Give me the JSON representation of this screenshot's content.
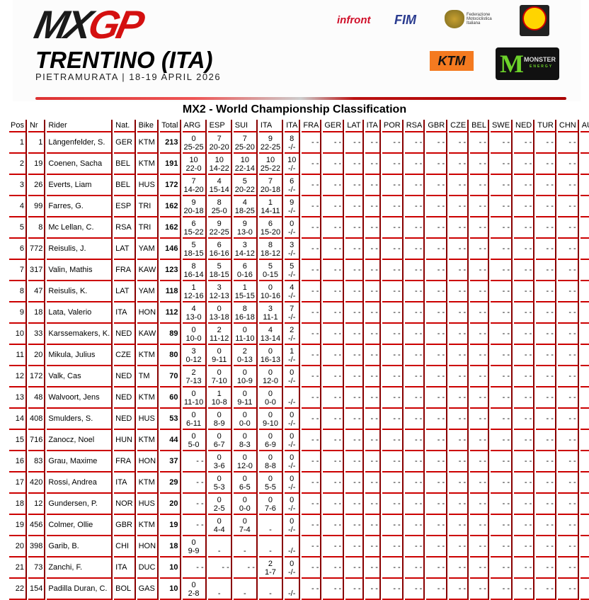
{
  "header": {
    "logo_mx": "MX",
    "logo_gp": "GP",
    "event": "TRENTINO (ITA)",
    "subtitle": "PIETRAMURATA | 18-19 APRIL 2026",
    "sponsors": {
      "infront": "infront",
      "fim": "FIM",
      "fmi": "Federazione Motociclistica Italiana",
      "ktm": "KTM",
      "monster": "MONSTER",
      "monster_sub": "ENERGY"
    }
  },
  "title": "MX2 - World Championship Classification",
  "columns": [
    "Pos",
    "Nr",
    "Rider",
    "Nat.",
    "Bike",
    "Total",
    "ARG",
    "ESP",
    "SUI",
    "ITA",
    "ITA",
    "FRA",
    "GER",
    "LAT",
    "ITA",
    "POR",
    "RSA",
    "GBR",
    "CZE",
    "BEL",
    "SWE",
    "NED",
    "TUR",
    "CHN",
    "AUS"
  ],
  "empty_cell": "- -",
  "colors": {
    "border_bottom": "#cc0000",
    "border_right": "#880000"
  },
  "rows": [
    {
      "pos": "1",
      "nr": "1",
      "rider": "Längenfelder, S.",
      "nat": "GER",
      "bike": "KTM",
      "total": "213",
      "ev": [
        [
          "0",
          "25-25"
        ],
        [
          "7",
          "20-20"
        ],
        [
          "7",
          "25-20"
        ],
        [
          "9",
          "22-25"
        ],
        [
          "8",
          "-/-"
        ]
      ]
    },
    {
      "pos": "2",
      "nr": "19",
      "rider": "Coenen, Sacha",
      "nat": "BEL",
      "bike": "KTM",
      "total": "191",
      "ev": [
        [
          "10",
          "22-0"
        ],
        [
          "10",
          "14-22"
        ],
        [
          "10",
          "22-14"
        ],
        [
          "10",
          "25-22"
        ],
        [
          "10",
          "-/-"
        ]
      ]
    },
    {
      "pos": "3",
      "nr": "26",
      "rider": "Everts, Liam",
      "nat": "BEL",
      "bike": "HUS",
      "total": "172",
      "ev": [
        [
          "7",
          "14-20"
        ],
        [
          "4",
          "15-14"
        ],
        [
          "5",
          "20-22"
        ],
        [
          "7",
          "20-18"
        ],
        [
          "6",
          "-/-"
        ]
      ]
    },
    {
      "pos": "4",
      "nr": "99",
      "rider": "Farres, G.",
      "nat": "ESP",
      "bike": "TRI",
      "total": "162",
      "ev": [
        [
          "9",
          "20-18"
        ],
        [
          "8",
          "25-0"
        ],
        [
          "4",
          "18-25"
        ],
        [
          "1",
          "14-11"
        ],
        [
          "9",
          "-/-"
        ]
      ]
    },
    {
      "pos": "5",
      "nr": "8",
      "rider": "Mc Lellan, C.",
      "nat": "RSA",
      "bike": "TRI",
      "total": "162",
      "ev": [
        [
          "6",
          "15-22"
        ],
        [
          "9",
          "22-25"
        ],
        [
          "9",
          "13-0"
        ],
        [
          "6",
          "15-20"
        ],
        [
          "0",
          "-/-"
        ]
      ]
    },
    {
      "pos": "6",
      "nr": "772",
      "rider": "Reisulis, J.",
      "nat": "LAT",
      "bike": "YAM",
      "total": "146",
      "ev": [
        [
          "5",
          "18-15"
        ],
        [
          "6",
          "16-16"
        ],
        [
          "3",
          "14-12"
        ],
        [
          "8",
          "18-12"
        ],
        [
          "3",
          "-/-"
        ]
      ]
    },
    {
      "pos": "7",
      "nr": "317",
      "rider": "Valin, Mathis",
      "nat": "FRA",
      "bike": "KAW",
      "total": "123",
      "ev": [
        [
          "8",
          "16-14"
        ],
        [
          "5",
          "18-15"
        ],
        [
          "6",
          "0-16"
        ],
        [
          "5",
          "0-15"
        ],
        [
          "5",
          "-/-"
        ]
      ]
    },
    {
      "pos": "8",
      "nr": "47",
      "rider": "Reisulis, K.",
      "nat": "LAT",
      "bike": "YAM",
      "total": "118",
      "ev": [
        [
          "1",
          "12-16"
        ],
        [
          "3",
          "12-13"
        ],
        [
          "1",
          "15-15"
        ],
        [
          "0",
          "10-16"
        ],
        [
          "4",
          "-/-"
        ]
      ]
    },
    {
      "pos": "9",
      "nr": "18",
      "rider": "Lata, Valerio",
      "nat": "ITA",
      "bike": "HON",
      "total": "112",
      "ev": [
        [
          "4",
          "13-0"
        ],
        [
          "0",
          "13-18"
        ],
        [
          "8",
          "16-18"
        ],
        [
          "3",
          "11-1"
        ],
        [
          "7",
          "-/-"
        ]
      ]
    },
    {
      "pos": "10",
      "nr": "33",
      "rider": "Karssemakers, K.",
      "nat": "NED",
      "bike": "KAW",
      "total": "89",
      "ev": [
        [
          "0",
          "10-0"
        ],
        [
          "2",
          "11-12"
        ],
        [
          "0",
          "11-10"
        ],
        [
          "4",
          "13-14"
        ],
        [
          "2",
          "-/-"
        ]
      ]
    },
    {
      "pos": "11",
      "nr": "20",
      "rider": "Mikula, Julius",
      "nat": "CZE",
      "bike": "KTM",
      "total": "80",
      "ev": [
        [
          "3",
          "0-12"
        ],
        [
          "0",
          "9-11"
        ],
        [
          "2",
          "0-13"
        ],
        [
          "0",
          "16-13"
        ],
        [
          "1",
          "-/-"
        ]
      ]
    },
    {
      "pos": "12",
      "nr": "172",
      "rider": "Valk, Cas",
      "nat": "NED",
      "bike": "TM",
      "total": "70",
      "ev": [
        [
          "2",
          "7-13"
        ],
        [
          "0",
          "7-10"
        ],
        [
          "0",
          "10-9"
        ],
        [
          "0",
          "12-0"
        ],
        [
          "0",
          "-/-"
        ]
      ]
    },
    {
      "pos": "13",
      "nr": "48",
      "rider": "Walvoort, Jens",
      "nat": "NED",
      "bike": "KTM",
      "total": "60",
      "ev": [
        [
          "0",
          "11-10"
        ],
        [
          "1",
          "10-8"
        ],
        [
          "0",
          "9-11"
        ],
        [
          "0",
          "0-0"
        ],
        [
          "",
          "-/-"
        ]
      ]
    },
    {
      "pos": "14",
      "nr": "408",
      "rider": "Smulders, S.",
      "nat": "NED",
      "bike": "HUS",
      "total": "53",
      "ev": [
        [
          "0",
          "6-11"
        ],
        [
          "0",
          "8-9"
        ],
        [
          "0",
          "0-0"
        ],
        [
          "0",
          "9-10"
        ],
        [
          "0",
          "-/-"
        ]
      ]
    },
    {
      "pos": "15",
      "nr": "716",
      "rider": "Zanocz, Noel",
      "nat": "HUN",
      "bike": "KTM",
      "total": "44",
      "ev": [
        [
          "0",
          "5-0"
        ],
        [
          "0",
          "6-7"
        ],
        [
          "0",
          "8-3"
        ],
        [
          "0",
          "6-9"
        ],
        [
          "0",
          "-/-"
        ]
      ]
    },
    {
      "pos": "16",
      "nr": "83",
      "rider": "Grau, Maxime",
      "nat": "FRA",
      "bike": "HON",
      "total": "37",
      "ev": [
        null,
        [
          "0",
          "3-6"
        ],
        [
          "0",
          "12-0"
        ],
        [
          "0",
          "8-8"
        ],
        [
          "0",
          "-/-"
        ]
      ]
    },
    {
      "pos": "17",
      "nr": "420",
      "rider": "Rossi, Andrea",
      "nat": "ITA",
      "bike": "KTM",
      "total": "29",
      "ev": [
        null,
        [
          "0",
          "5-3"
        ],
        [
          "0",
          "6-5"
        ],
        [
          "0",
          "5-5"
        ],
        [
          "0",
          "-/-"
        ]
      ]
    },
    {
      "pos": "18",
      "nr": "12",
      "rider": "Gundersen, P.",
      "nat": "NOR",
      "bike": "HUS",
      "total": "20",
      "ev": [
        null,
        [
          "0",
          "2-5"
        ],
        [
          "0",
          "0-0"
        ],
        [
          "0",
          "7-6"
        ],
        [
          "0",
          "-/-"
        ]
      ]
    },
    {
      "pos": "19",
      "nr": "456",
      "rider": "Colmer, Ollie",
      "nat": "GBR",
      "bike": "KTM",
      "total": "19",
      "ev": [
        null,
        [
          "0",
          "4-4"
        ],
        [
          "0",
          "7-4"
        ],
        [
          "",
          "-"
        ],
        [
          "0",
          "-/-"
        ]
      ]
    },
    {
      "pos": "20",
      "nr": "398",
      "rider": "Garib, B.",
      "nat": "CHI",
      "bike": "HON",
      "total": "18",
      "ev": [
        [
          "0",
          "9-9"
        ],
        [
          "",
          "-"
        ],
        [
          "",
          "-"
        ],
        [
          "",
          "-"
        ],
        [
          "",
          "-/-"
        ]
      ]
    },
    {
      "pos": "21",
      "nr": "73",
      "rider": "Zanchi, F.",
      "nat": "ITA",
      "bike": "DUC",
      "total": "10",
      "ev": [
        null,
        null,
        null,
        [
          "2",
          "1-7"
        ],
        [
          "0",
          "-/-"
        ]
      ]
    },
    {
      "pos": "22",
      "nr": "154",
      "rider": "Padilla Duran, C.",
      "nat": "BOL",
      "bike": "GAS",
      "total": "10",
      "ev": [
        [
          "0",
          "2-8"
        ],
        [
          "",
          "-"
        ],
        [
          "",
          "-"
        ],
        [
          "",
          "-"
        ],
        [
          "",
          "-/-"
        ]
      ]
    }
  ]
}
